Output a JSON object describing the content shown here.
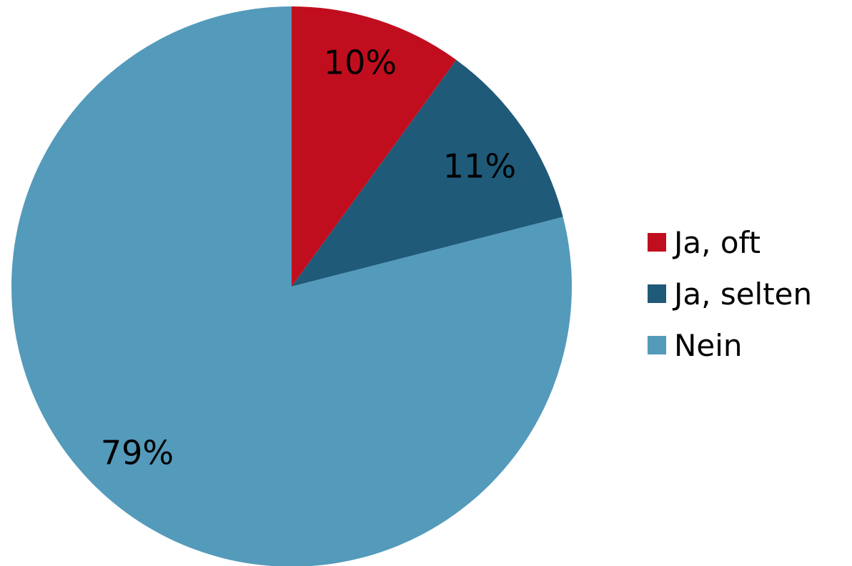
{
  "chart_data": {
    "type": "pie",
    "categories": [
      "Ja, oft",
      "Ja, selten",
      "Nein"
    ],
    "values": [
      10,
      11,
      79
    ],
    "labels": [
      "10%",
      "11%",
      "79%"
    ],
    "colors": [
      "#c10e1e",
      "#1f5a79",
      "#549abb"
    ],
    "start_angle_deg": 0,
    "direction": "clockwise",
    "legend_position": "right"
  },
  "legend": {
    "items": [
      {
        "label": "Ja, oft",
        "color": "#c10e1e"
      },
      {
        "label": "Ja, selten",
        "color": "#1f5a79"
      },
      {
        "label": "Nein",
        "color": "#549abb"
      }
    ]
  }
}
